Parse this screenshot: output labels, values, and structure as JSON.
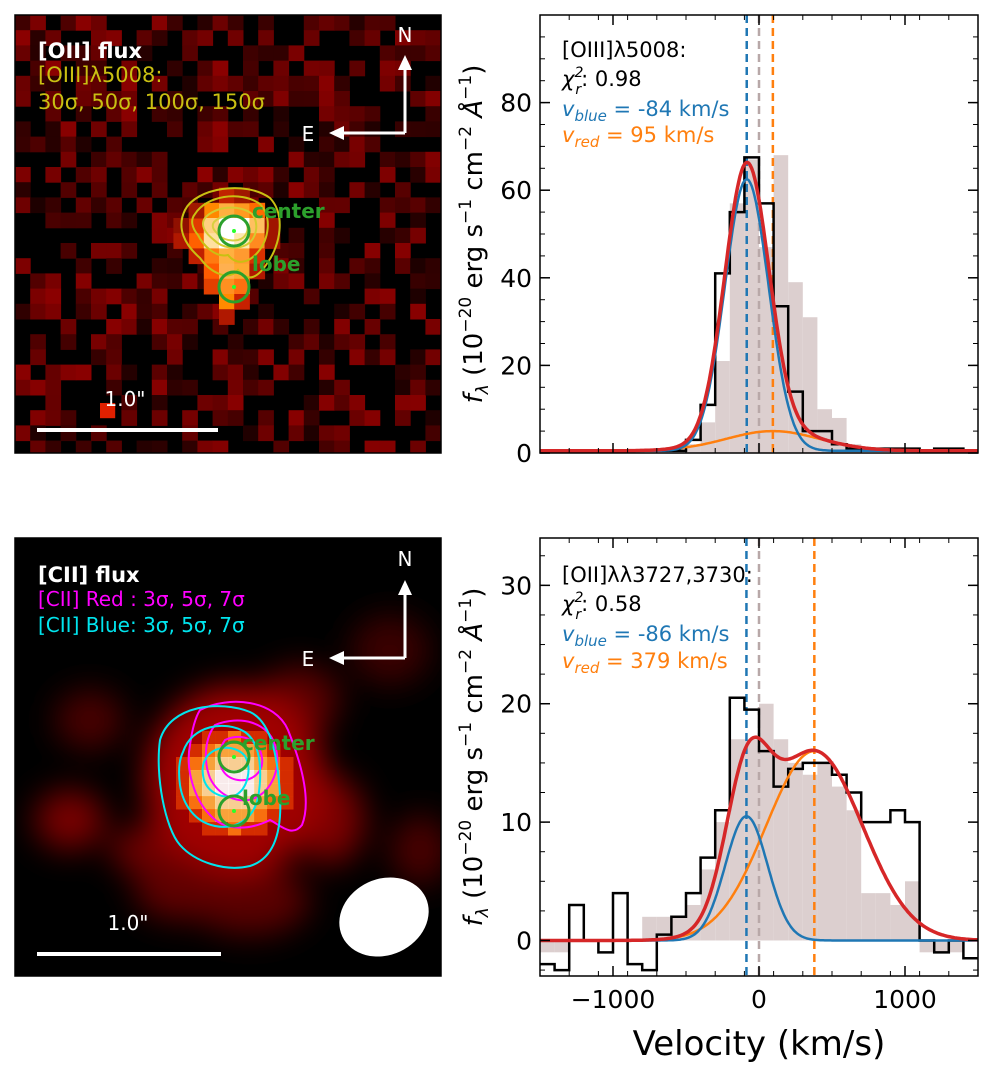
{
  "images": {
    "top": {
      "title": "[OII] flux",
      "contour_label": "[OIII]λ5008:",
      "contour_levels": "30σ, 50σ, 100σ, 150σ",
      "compass_n": "N",
      "compass_e": "E",
      "scale_label": "1.0\"",
      "marker_center": "center",
      "marker_lobe": "lobe"
    },
    "bottom": {
      "title": "[CII] flux",
      "red_label": "[CII] Red : 3σ, 5σ, 7σ",
      "blue_label": "[CII] Blue: 3σ, 5σ, 7σ",
      "compass_n": "N",
      "compass_e": "E",
      "scale_label": "1.0\"",
      "marker_center": "center",
      "marker_lobe": "lobe"
    }
  },
  "colors": {
    "blue": "#1f77b4",
    "orange": "#ff7f0e",
    "red": "#d62728",
    "model_bg": "#dccfcf",
    "grey_line": "#b8a8a8",
    "contour_olive": "#c9c012",
    "magenta": "#ff00ff",
    "cyan": "#00e5ee",
    "green": "#2ca02c"
  },
  "chart_data": [
    {
      "type": "line",
      "panel": "top",
      "line": "[OIII]λ5008:",
      "chi_label": ": 0.98",
      "v_blue_text": " = -84 km/s",
      "v_red_text": " = 95 km/s",
      "v_blue": -84,
      "v_red": 95,
      "ylabel": "f_λ (10^-20 erg s^-1 cm^-2 Å^-1)",
      "xlabel": "",
      "xlim": [
        -1500,
        1500
      ],
      "ylim": [
        0,
        100
      ],
      "yticks": [
        0,
        20,
        40,
        60,
        80
      ],
      "xticks": [
        -1000,
        0,
        1000
      ],
      "bin_edges": [
        -1500,
        -1400,
        -1300,
        -1200,
        -1100,
        -1000,
        -900,
        -800,
        -700,
        -600,
        -500,
        -400,
        -300,
        -200,
        -100,
        0,
        100,
        200,
        300,
        400,
        500,
        600,
        700,
        800,
        900,
        1000,
        1100,
        1200,
        1300,
        1400,
        1500
      ],
      "spectrum": [
        0.5,
        0.5,
        0.5,
        0.5,
        0.5,
        0.5,
        0.5,
        0.5,
        0.5,
        0.5,
        3,
        11,
        41,
        55,
        67.5,
        57,
        33.5,
        14,
        5,
        5,
        2,
        1,
        1,
        1,
        1,
        1,
        0,
        1,
        1,
        0
      ],
      "model_hist": [
        0.5,
        0.5,
        0.5,
        0.5,
        0.5,
        0.5,
        0.5,
        0.5,
        0.5,
        0.5,
        2,
        7,
        21,
        57,
        67,
        47,
        68,
        39,
        31,
        10,
        8,
        2,
        0,
        0,
        0,
        0,
        0,
        0,
        0,
        0
      ],
      "blue_gauss": {
        "amp": 62,
        "mu": -84,
        "sigma": 150
      },
      "red_gauss": {
        "amp": 4.5,
        "mu": 95,
        "sigma": 320
      },
      "offset": 0.5
    },
    {
      "type": "line",
      "panel": "bottom",
      "line": "[OII]λλ3727,3730:",
      "chi_label": ": 0.58",
      "v_blue_text": " = -86 km/s",
      "v_red_text": " = 379 km/s",
      "v_blue": -86,
      "v_red": 379,
      "ylabel": "f_λ (10^-20 erg s^-1 cm^-2 Å^-1)",
      "xlabel": "Velocity (km/s)",
      "xlim": [
        -1500,
        1500
      ],
      "ylim": [
        -3,
        34
      ],
      "yticks": [
        0,
        10,
        20,
        30
      ],
      "xticks": [
        -1000,
        0,
        1000
      ],
      "xticklabels": [
        "−1000",
        "0",
        "1000"
      ],
      "bin_edges": [
        -1500,
        -1400,
        -1300,
        -1200,
        -1100,
        -1000,
        -900,
        -800,
        -700,
        -600,
        -500,
        -400,
        -300,
        -200,
        -100,
        0,
        100,
        200,
        300,
        400,
        500,
        600,
        700,
        800,
        900,
        1000,
        1100,
        1200,
        1300,
        1400,
        1500
      ],
      "spectrum": [
        -2,
        -2.5,
        3,
        0,
        -1,
        4,
        -2,
        -2.5,
        0.5,
        2,
        4,
        7,
        11,
        20.5,
        19.5,
        16,
        13,
        14.5,
        15,
        15,
        14,
        12.5,
        10,
        10,
        11,
        10,
        0,
        -1,
        0,
        -1.5
      ],
      "model_hist": [
        -1,
        -1,
        0,
        0,
        0,
        0,
        0,
        2,
        2,
        2,
        3,
        6,
        10,
        17,
        17,
        20,
        17,
        15,
        14,
        15,
        13,
        11,
        4,
        4,
        3,
        5,
        -1,
        -1,
        -1,
        0
      ],
      "blue_gauss": {
        "amp": 10.5,
        "mu": -86,
        "sigma": 145
      },
      "red_gauss": {
        "amp": 16,
        "mu": 379,
        "sigma": 330
      },
      "offset": 0
    }
  ]
}
